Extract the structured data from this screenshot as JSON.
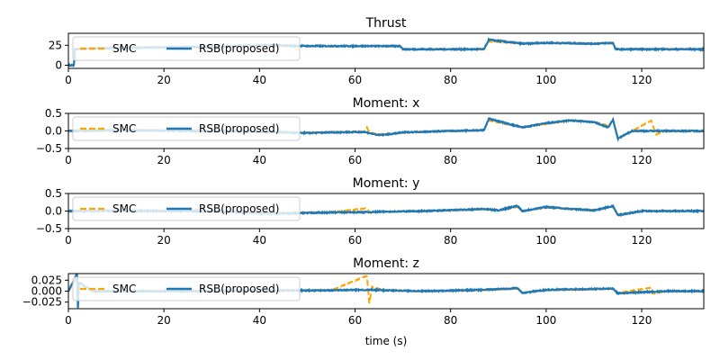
{
  "colors": {
    "smc": "#ffa500",
    "rsb": "#1f77b4",
    "axes": "#000000",
    "legend_border": "#cccccc"
  },
  "xlabel": "time (s)",
  "legend": [
    "SMC",
    "RSB(proposed)"
  ],
  "chart_data": [
    {
      "type": "line",
      "title": "Thrust",
      "xlim": [
        0,
        133
      ],
      "ylim": [
        -4,
        40
      ],
      "xticks": [
        0,
        20,
        40,
        60,
        80,
        100,
        120
      ],
      "xtick_labels": [
        "0",
        "20",
        "40",
        "60",
        "80",
        "100",
        "120"
      ],
      "yticks": [
        0,
        25
      ],
      "ytick_labels": [
        "0",
        "25"
      ],
      "legend_position": "upper-left",
      "series": [
        {
          "name": "SMC",
          "x": [
            0,
            1.2,
            1.3,
            5,
            15,
            30,
            40,
            50,
            60,
            69.5,
            70,
            80,
            87,
            88,
            95,
            100,
            110,
            114,
            114.5,
            120,
            133
          ],
          "values": [
            0,
            0,
            20,
            22,
            22,
            22,
            24,
            24,
            24,
            24,
            20,
            20,
            20,
            30,
            27,
            28,
            27,
            28,
            20,
            20,
            20
          ]
        },
        {
          "name": "RSB(proposed)",
          "x": [
            0,
            1.2,
            1.3,
            5,
            15,
            30,
            40,
            50,
            60,
            69.5,
            70,
            80,
            87,
            88,
            95,
            100,
            110,
            114,
            114.5,
            120,
            133
          ],
          "values": [
            0,
            0,
            20,
            21,
            22,
            23,
            25,
            24,
            24,
            24,
            20,
            20,
            20,
            32,
            27,
            28,
            27,
            28,
            20,
            20,
            20
          ]
        }
      ]
    },
    {
      "type": "line",
      "title": "Moment: x",
      "xlim": [
        0,
        133
      ],
      "ylim": [
        -0.5,
        0.5
      ],
      "xticks": [
        0,
        20,
        40,
        60,
        80,
        100,
        120
      ],
      "xtick_labels": [
        "0",
        "20",
        "40",
        "60",
        "80",
        "100",
        "120"
      ],
      "yticks": [
        -0.5,
        0.0,
        0.5
      ],
      "ytick_labels": [
        "−0.5",
        "0.0",
        "0.5"
      ],
      "legend_position": "upper-left",
      "series": [
        {
          "name": "SMC",
          "x": [
            0,
            10,
            20,
            30,
            40,
            50,
            55,
            62,
            62.5,
            63,
            65,
            70,
            80,
            87,
            88,
            95,
            100,
            105,
            110,
            113,
            114,
            115,
            118,
            122,
            123,
            125,
            133
          ],
          "values": [
            0,
            0.02,
            0.02,
            0,
            -0.02,
            -0.05,
            -0.03,
            -0.02,
            0.1,
            -0.05,
            -0.1,
            -0.05,
            0,
            0.02,
            0.3,
            0.1,
            0.2,
            0.3,
            0.25,
            0.15,
            0.3,
            -0.2,
            0,
            0.3,
            -0.1,
            0,
            0
          ]
        },
        {
          "name": "RSB(proposed)",
          "x": [
            0,
            10,
            20,
            30,
            40,
            50,
            55,
            62,
            65,
            68,
            70,
            80,
            87,
            88,
            95,
            100,
            105,
            110,
            113,
            114,
            115,
            118,
            125,
            133
          ],
          "values": [
            0,
            0.02,
            0.01,
            0,
            -0.02,
            -0.06,
            -0.04,
            -0.03,
            -0.12,
            -0.08,
            -0.04,
            0,
            0.02,
            0.35,
            0.1,
            0.22,
            0.3,
            0.25,
            0.1,
            0.32,
            -0.22,
            0,
            0,
            0
          ]
        }
      ]
    },
    {
      "type": "line",
      "title": "Moment: y",
      "xlim": [
        0,
        133
      ],
      "ylim": [
        -0.5,
        0.5
      ],
      "xticks": [
        0,
        20,
        40,
        60,
        80,
        100,
        120
      ],
      "xtick_labels": [
        "0",
        "20",
        "40",
        "60",
        "80",
        "100",
        "120"
      ],
      "yticks": [
        -0.5,
        0.0,
        0.5
      ],
      "ytick_labels": [
        "−0.5",
        "0.0",
        "0.5"
      ],
      "legend_position": "upper-left",
      "series": [
        {
          "name": "SMC",
          "x": [
            0,
            10,
            20,
            30,
            40,
            45,
            55,
            62.5,
            63,
            65,
            75,
            87,
            90,
            94,
            95,
            100,
            105,
            110,
            114,
            115,
            120,
            133
          ],
          "values": [
            0,
            0.02,
            0,
            0,
            -0.05,
            -0.06,
            -0.03,
            0.08,
            -0.05,
            -0.02,
            0,
            0.05,
            0.02,
            0.12,
            0,
            0.1,
            0.06,
            0.03,
            0.12,
            -0.1,
            0,
            0
          ]
        },
        {
          "name": "RSB(proposed)",
          "x": [
            0,
            10,
            20,
            30,
            40,
            45,
            55,
            63,
            65,
            75,
            87,
            90,
            94,
            95,
            100,
            105,
            110,
            114,
            115,
            120,
            133
          ],
          "values": [
            0,
            0.01,
            0,
            0,
            -0.06,
            -0.07,
            -0.04,
            -0.03,
            -0.02,
            0,
            0.06,
            0.02,
            0.15,
            0,
            0.12,
            0.06,
            0.02,
            0.14,
            -0.12,
            0,
            0
          ]
        }
      ]
    },
    {
      "type": "line",
      "title": "Moment: z",
      "xlim": [
        0,
        133
      ],
      "ylim": [
        -0.04,
        0.04
      ],
      "xticks": [
        0,
        20,
        40,
        60,
        80,
        100,
        120
      ],
      "xtick_labels": [
        "0",
        "20",
        "40",
        "60",
        "80",
        "100",
        "120"
      ],
      "yticks": [
        -0.025,
        0.0,
        0.025
      ],
      "ytick_labels": [
        "−0.025",
        "0.000",
        "0.025"
      ],
      "legend_position": "upper-left",
      "series": [
        {
          "name": "SMC",
          "x": [
            0,
            1.8,
            2,
            2.2,
            5,
            20,
            40,
            55,
            62.5,
            63,
            63.5,
            66,
            75,
            87,
            94,
            95,
            100,
            114,
            115,
            122,
            122.5,
            125,
            133
          ],
          "values": [
            0,
            0.03,
            -0.035,
            0.02,
            0,
            0,
            0.001,
            0.002,
            0.035,
            -0.03,
            0.01,
            0.002,
            0,
            0.002,
            0.006,
            -0.004,
            0.002,
            0.005,
            -0.004,
            0.008,
            -0.006,
            0,
            0
          ]
        },
        {
          "name": "RSB(proposed)",
          "x": [
            0,
            1.8,
            2,
            2.2,
            5,
            20,
            40,
            55,
            63,
            66,
            75,
            87,
            94,
            95,
            100,
            114,
            115,
            125,
            133
          ],
          "values": [
            0,
            0.04,
            -0.04,
            0.02,
            0,
            0,
            0.001,
            0.002,
            0.003,
            0.002,
            0,
            0.003,
            0.007,
            -0.004,
            0.003,
            0.006,
            -0.005,
            0,
            0
          ]
        }
      ]
    }
  ]
}
